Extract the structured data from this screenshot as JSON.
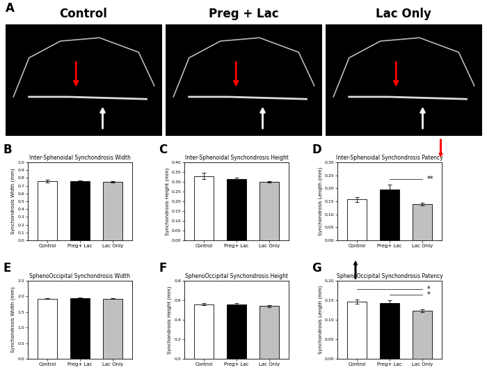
{
  "panel_a": {
    "panel": "A",
    "titles": [
      "Control",
      "Preg + Lac",
      "Lac Only"
    ]
  },
  "chart_data": [
    {
      "type": "bar",
      "panel": "B",
      "title": "Inter-Sphenoidal Synchondrosis Width",
      "y_label": "Synchondrosis Width (mm)",
      "categories": [
        "Control",
        "Preg+ Lac",
        "Lac Only"
      ],
      "values": [
        0.76,
        0.76,
        0.75
      ],
      "errors": [
        0.015,
        0.008,
        0.008
      ],
      "colors": [
        "#ffffff",
        "#000000",
        "#c0c0c0"
      ],
      "ylim": [
        0,
        1.0
      ],
      "yticks": [
        0.0,
        0.1,
        0.2,
        0.3,
        0.4,
        0.5,
        0.6,
        0.7,
        0.8,
        0.9,
        1.0
      ]
    },
    {
      "type": "bar",
      "panel": "C",
      "title": "Inter-Sphenoidal Synchondrosis Height",
      "y_label": "Synchondrosis Height (mm)",
      "categories": [
        "Control",
        "Preg+ Lac",
        "Lac Only"
      ],
      "values": [
        0.33,
        0.315,
        0.3
      ],
      "errors": [
        0.015,
        0.005,
        0.004
      ],
      "colors": [
        "#ffffff",
        "#000000",
        "#c0c0c0"
      ],
      "ylim": [
        0,
        0.4
      ],
      "yticks": [
        {
          "value": 0.0,
          "label": "0.00"
        },
        {
          "value": 0.05,
          "label": "0.05"
        },
        {
          "value": 0.1,
          "label": "0.10"
        },
        {
          "value": 0.15,
          "label": "0.15"
        },
        {
          "value": 0.2,
          "label": "0.20"
        },
        {
          "value": 0.25,
          "label": "0.25"
        },
        {
          "value": 0.3,
          "label": "0.30"
        },
        {
          "value": 0.35,
          "label": "0.35"
        },
        {
          "value": 0.4,
          "label": "0.40"
        }
      ]
    },
    {
      "type": "bar",
      "panel": "D",
      "title": "Inter-Sphenoidal Synchondrosis Patency",
      "y_label": "Synchondrosis Length (mm)",
      "categories": [
        "Control",
        "Preg+ Lac",
        "Lac Only"
      ],
      "values": [
        0.157,
        0.195,
        0.14
      ],
      "errors": [
        0.01,
        0.02,
        0.005
      ],
      "colors": [
        "#ffffff",
        "#000000",
        "#c0c0c0"
      ],
      "ylim": [
        0,
        0.3
      ],
      "yticks": [
        {
          "value": 0.0,
          "label": "0.00"
        },
        {
          "value": 0.05,
          "label": "0.05"
        },
        {
          "value": 0.1,
          "label": "0.10"
        },
        {
          "value": 0.15,
          "label": "0.15"
        },
        {
          "value": 0.2,
          "label": "0.20"
        },
        {
          "value": 0.25,
          "label": "0.25"
        },
        {
          "value": 0.3,
          "label": "0.30"
        }
      ],
      "annotations": [
        {
          "text": "**",
          "between": [
            "Preg+ Lac",
            "Lac Only"
          ]
        }
      ]
    },
    {
      "type": "bar",
      "panel": "E",
      "title": "SphenoOccipital Synchondrosis Width",
      "y_label": "Synchondrosis Width (mm)",
      "categories": [
        "Control",
        "Preg+ Lac",
        "Lac Only"
      ],
      "values": [
        1.93,
        1.95,
        1.93
      ],
      "errors": [
        0.01,
        0.01,
        0.01
      ],
      "colors": [
        "#ffffff",
        "#000000",
        "#c0c0c0"
      ],
      "ylim": [
        0,
        2.5
      ],
      "yticks": [
        0.0,
        0.5,
        1.0,
        1.5,
        2.0,
        2.5
      ]
    },
    {
      "type": "bar",
      "panel": "F",
      "title": "SphenoOccipital Synchondrosis Height",
      "y_label": "Synchondrosis Height (mm)",
      "categories": [
        "Control",
        "Preg+ Lac",
        "Lac Only"
      ],
      "values": [
        0.56,
        0.56,
        0.54
      ],
      "errors": [
        0.008,
        0.01,
        0.008
      ],
      "colors": [
        "#ffffff",
        "#000000",
        "#c0c0c0"
      ],
      "ylim": [
        0,
        0.8
      ],
      "yticks": [
        0.0,
        0.2,
        0.4,
        0.6,
        0.8
      ]
    },
    {
      "type": "bar",
      "panel": "G",
      "title": "SphenoOccipital Synchondrosis Patency",
      "y_label": "Synchondrosis Length (mm)",
      "categories": [
        "Control",
        "Preg+ Lac",
        "Lac Only"
      ],
      "values": [
        0.146,
        0.143,
        0.123
      ],
      "errors": [
        0.005,
        0.007,
        0.004
      ],
      "colors": [
        "#ffffff",
        "#000000",
        "#c0c0c0"
      ],
      "ylim": [
        0,
        0.2
      ],
      "yticks": [
        {
          "value": 0.0,
          "label": "0.00"
        },
        {
          "value": 0.05,
          "label": "0.05"
        },
        {
          "value": 0.1,
          "label": "0.10"
        },
        {
          "value": 0.15,
          "label": "0.15"
        },
        {
          "value": 0.2,
          "label": "0.20"
        }
      ],
      "annotations": [
        {
          "text": "*",
          "between": [
            "Control",
            "Lac Only"
          ]
        },
        {
          "text": "*",
          "between": [
            "Preg+ Lac",
            "Lac Only"
          ]
        }
      ]
    }
  ]
}
